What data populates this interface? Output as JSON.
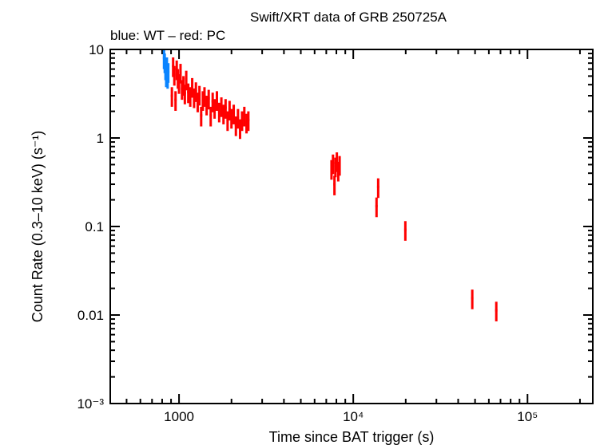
{
  "chart_data": {
    "type": "scatter",
    "title": "Swift/XRT data of GRB 250725A",
    "subtitle": "blue: WT – red: PC",
    "xlabel": "Time since BAT trigger (s)",
    "ylabel": "Count Rate (0.3–10 keV) (s⁻¹)",
    "xscale": "log",
    "yscale": "log",
    "xlim": [
      403,
      237000
    ],
    "ylim": [
      0.001,
      10
    ],
    "grid": false,
    "x_ticks": [
      {
        "value": 1000,
        "label": "1000"
      },
      {
        "value": 10000,
        "label": "10⁴"
      },
      {
        "value": 100000,
        "label": "10⁵"
      }
    ],
    "y_ticks": [
      {
        "value": 10,
        "label": "10"
      },
      {
        "value": 1,
        "label": "1"
      },
      {
        "value": 0.1,
        "label": "0.1"
      },
      {
        "value": 0.01,
        "label": "0.01"
      },
      {
        "value": 0.001,
        "label": "10⁻³"
      }
    ],
    "series": [
      {
        "name": "WT",
        "color": "#0a84ff",
        "points": [
          [
            820,
            8.0
          ],
          [
            828,
            7.2
          ],
          [
            836,
            6.0
          ],
          [
            844,
            5.0
          ],
          [
            852,
            6.5
          ],
          [
            860,
            4.8
          ],
          [
            868,
            5.6
          ]
        ]
      },
      {
        "name": "PC",
        "color": "#ff0000",
        "points": [
          [
            910,
            3.0
          ],
          [
            925,
            6.5
          ],
          [
            940,
            5.2
          ],
          [
            955,
            2.7
          ],
          [
            970,
            6.0
          ],
          [
            985,
            4.8
          ],
          [
            1000,
            4.2
          ],
          [
            1020,
            5.5
          ],
          [
            1040,
            3.6
          ],
          [
            1060,
            4.0
          ],
          [
            1080,
            3.2
          ],
          [
            1100,
            4.6
          ],
          [
            1130,
            3.3
          ],
          [
            1160,
            3.0
          ],
          [
            1190,
            3.8
          ],
          [
            1220,
            2.9
          ],
          [
            1250,
            3.4
          ],
          [
            1280,
            2.6
          ],
          [
            1310,
            3.1
          ],
          [
            1340,
            1.8
          ],
          [
            1370,
            2.7
          ],
          [
            1400,
            3.0
          ],
          [
            1440,
            2.4
          ],
          [
            1480,
            2.8
          ],
          [
            1520,
            1.8
          ],
          [
            1560,
            2.6
          ],
          [
            1600,
            2.2
          ],
          [
            1650,
            2.7
          ],
          [
            1700,
            2.0
          ],
          [
            1750,
            2.3
          ],
          [
            1800,
            1.9
          ],
          [
            1850,
            2.2
          ],
          [
            1900,
            1.6
          ],
          [
            1950,
            2.1
          ],
          [
            2000,
            1.7
          ],
          [
            2060,
            1.9
          ],
          [
            2120,
            1.4
          ],
          [
            2180,
            1.7
          ],
          [
            2240,
            1.3
          ],
          [
            2300,
            1.6
          ],
          [
            2370,
            1.8
          ],
          [
            2440,
            1.5
          ],
          [
            2500,
            1.6
          ],
          [
            7500,
            0.45
          ],
          [
            7650,
            0.52
          ],
          [
            7800,
            0.3
          ],
          [
            7900,
            0.48
          ],
          [
            8050,
            0.55
          ],
          [
            8200,
            0.43
          ],
          [
            8350,
            0.5
          ],
          [
            13600,
            0.17
          ],
          [
            13900,
            0.28
          ],
          [
            19900,
            0.092
          ],
          [
            48200,
            0.0155
          ],
          [
            66200,
            0.0113
          ]
        ]
      }
    ],
    "relative_error": 0.25
  }
}
